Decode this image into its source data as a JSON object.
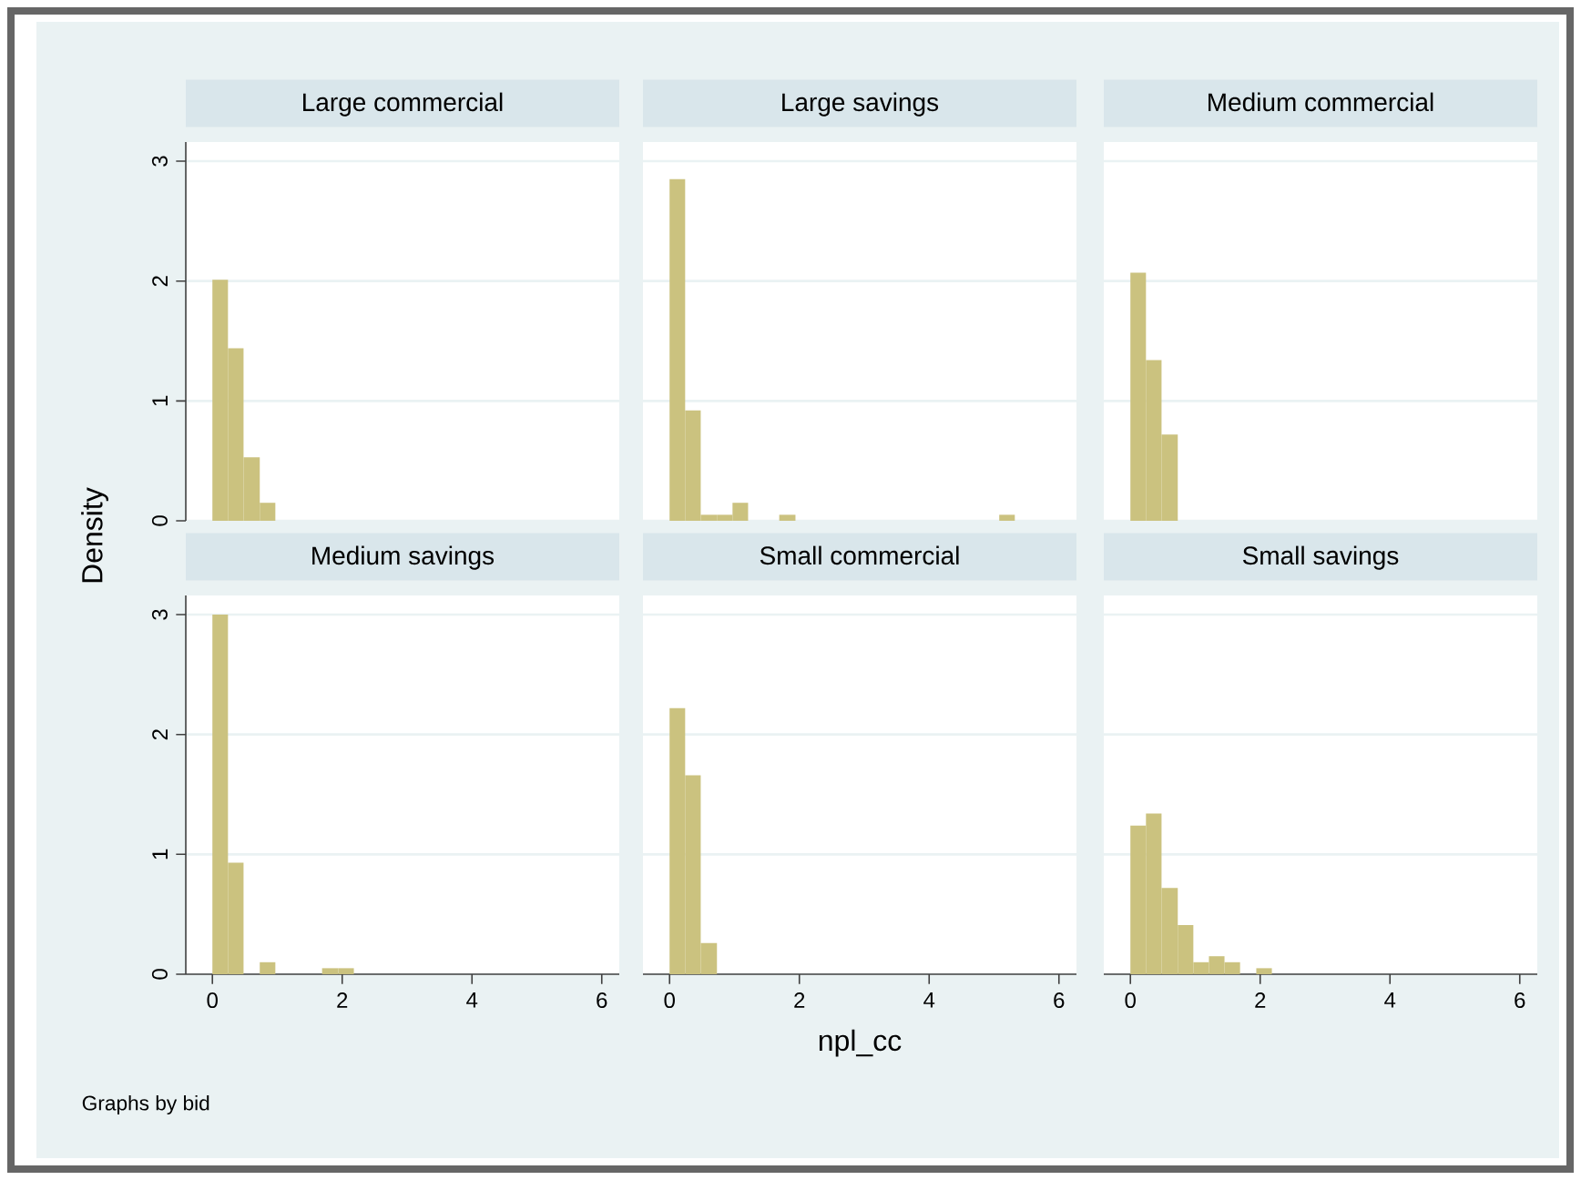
{
  "chart_data": [
    {
      "type": "histogram",
      "title": "Large commercial",
      "ylabel": "Density",
      "bins": [
        0,
        0.24,
        0.48,
        0.73,
        0.97
      ],
      "values": [
        2.01,
        1.44,
        0.53,
        0.15
      ],
      "color": "#cbc27f",
      "xlim": [
        -0.41,
        6.27
      ],
      "ylim": [
        0,
        3.16
      ],
      "xticks": [
        0,
        2,
        4,
        6
      ],
      "yticks": [
        0,
        1,
        2,
        3
      ],
      "grid": "y",
      "tick_labels": "y"
    },
    {
      "type": "histogram",
      "title": "Large savings",
      "bins": [
        0,
        0.24,
        0.48,
        0.73,
        0.97,
        1.21,
        1.69,
        1.94,
        5.08,
        5.32
      ],
      "values": [
        2.85,
        0.92,
        0.05,
        0.05,
        0.15,
        0,
        0.05,
        0,
        0.05
      ],
      "color": "#cbc27f",
      "xlim": [
        -0.41,
        6.27
      ],
      "ylim": [
        0,
        3.16
      ],
      "xticks": [
        0,
        2,
        4,
        6
      ],
      "yticks": [
        0,
        1,
        2,
        3
      ],
      "grid": "y",
      "tick_labels": false
    },
    {
      "type": "histogram",
      "title": "Medium commercial",
      "bins": [
        0,
        0.24,
        0.48,
        0.73
      ],
      "values": [
        2.07,
        1.34,
        0.72
      ],
      "color": "#cbc27f",
      "xlim": [
        -0.41,
        6.27
      ],
      "ylim": [
        0,
        3.16
      ],
      "xticks": [
        0,
        2,
        4,
        6
      ],
      "yticks": [
        0,
        1,
        2,
        3
      ],
      "grid": "y",
      "tick_labels": false
    },
    {
      "type": "histogram",
      "title": "Medium savings",
      "annotations": [
        "Graphs by bid"
      ],
      "bins": [
        0,
        0.24,
        0.48,
        0.73,
        0.97,
        1.69,
        1.94,
        2.18
      ],
      "values": [
        3.0,
        0.93,
        0,
        0.1,
        0,
        0.05,
        0.05
      ],
      "color": "#cbc27f",
      "xlim": [
        -0.41,
        6.27
      ],
      "ylim": [
        0,
        3.16
      ],
      "xticks": [
        0,
        2,
        4,
        6
      ],
      "yticks": [
        0,
        1,
        2,
        3
      ],
      "grid": "y"
    },
    {
      "type": "histogram",
      "title": "Small commercial",
      "xlabel": "npl_cc",
      "bins": [
        0,
        0.24,
        0.48,
        0.73
      ],
      "values": [
        2.22,
        1.66,
        0.26
      ],
      "color": "#cbc27f",
      "xlim": [
        -0.41,
        6.27
      ],
      "ylim": [
        0,
        3.16
      ],
      "xticks": [
        0,
        2,
        4,
        6
      ],
      "yticks": [
        0,
        1,
        2,
        3
      ],
      "grid": "y",
      "tick_labels": "x"
    },
    {
      "type": "histogram",
      "title": "Small savings",
      "bins": [
        0,
        0.24,
        0.48,
        0.73,
        0.97,
        1.21,
        1.45,
        1.69,
        1.94,
        2.18
      ],
      "values": [
        1.24,
        1.34,
        0.72,
        0.41,
        0.1,
        0.15,
        0.1,
        0,
        0.05
      ],
      "color": "#cbc27f",
      "xlim": [
        -0.41,
        6.27
      ],
      "ylim": [
        0,
        3.16
      ],
      "xticks": [
        0,
        2,
        4,
        6
      ],
      "yticks": [
        0,
        1,
        2,
        3
      ],
      "grid": "y",
      "tick_labels": "x"
    }
  ]
}
